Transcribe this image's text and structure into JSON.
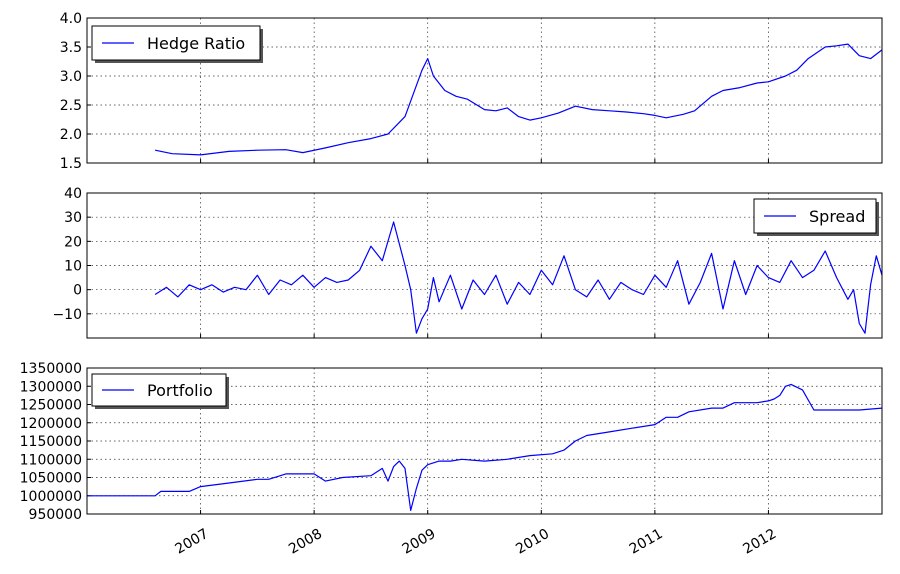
{
  "chart_data": [
    {
      "type": "line",
      "title": "",
      "xlabel": "",
      "ylabel": "",
      "ylim": [
        1.5,
        4.0
      ],
      "yticks": [
        "1.5",
        "2.0",
        "2.5",
        "3.0",
        "3.5",
        "4.0"
      ],
      "grid": true,
      "legend": {
        "placement": "top-left",
        "label": "Hedge Ratio"
      },
      "color": "#0000ff",
      "series": [
        {
          "name": "Hedge Ratio",
          "x": [
            2006.6,
            2006.75,
            2007.0,
            2007.25,
            2007.5,
            2007.75,
            2007.9,
            2008.1,
            2008.3,
            2008.5,
            2008.65,
            2008.8,
            2008.95,
            2009.0,
            2009.05,
            2009.15,
            2009.25,
            2009.35,
            2009.5,
            2009.6,
            2009.7,
            2009.8,
            2009.9,
            2010.0,
            2010.15,
            2010.3,
            2010.45,
            2010.6,
            2010.75,
            2010.9,
            2011.0,
            2011.1,
            2011.25,
            2011.35,
            2011.5,
            2011.6,
            2011.75,
            2011.9,
            2012.0,
            2012.15,
            2012.25,
            2012.35,
            2012.5,
            2012.6,
            2012.7,
            2012.8,
            2012.9,
            2013.0
          ],
          "y": [
            1.72,
            1.66,
            1.64,
            1.7,
            1.72,
            1.73,
            1.68,
            1.76,
            1.85,
            1.92,
            2.0,
            2.3,
            3.1,
            3.3,
            3.0,
            2.75,
            2.65,
            2.6,
            2.42,
            2.4,
            2.45,
            2.3,
            2.24,
            2.28,
            2.36,
            2.48,
            2.42,
            2.4,
            2.38,
            2.35,
            2.32,
            2.28,
            2.34,
            2.4,
            2.65,
            2.75,
            2.8,
            2.88,
            2.9,
            3.0,
            3.1,
            3.3,
            3.5,
            3.52,
            3.55,
            3.35,
            3.3,
            3.45
          ]
        }
      ]
    },
    {
      "type": "line",
      "title": "",
      "xlabel": "",
      "ylabel": "",
      "ylim": [
        -20,
        40
      ],
      "yticks": [
        "−10",
        "0",
        "10",
        "20",
        "30",
        "40"
      ],
      "grid": true,
      "legend": {
        "placement": "top-right",
        "label": "Spread"
      },
      "color": "#0000ff",
      "series": [
        {
          "name": "Spread",
          "x": [
            2006.6,
            2006.7,
            2006.8,
            2006.9,
            2007.0,
            2007.1,
            2007.2,
            2007.3,
            2007.4,
            2007.5,
            2007.6,
            2007.7,
            2007.8,
            2007.9,
            2008.0,
            2008.1,
            2008.2,
            2008.3,
            2008.4,
            2008.5,
            2008.6,
            2008.7,
            2008.8,
            2008.85,
            2008.9,
            2008.95,
            2009.0,
            2009.05,
            2009.1,
            2009.2,
            2009.3,
            2009.4,
            2009.5,
            2009.6,
            2009.7,
            2009.8,
            2009.9,
            2010.0,
            2010.1,
            2010.2,
            2010.3,
            2010.4,
            2010.5,
            2010.6,
            2010.7,
            2010.8,
            2010.9,
            2011.0,
            2011.1,
            2011.2,
            2011.3,
            2011.4,
            2011.5,
            2011.6,
            2011.7,
            2011.8,
            2011.9,
            2012.0,
            2012.1,
            2012.2,
            2012.3,
            2012.4,
            2012.5,
            2012.6,
            2012.7,
            2012.75,
            2012.8,
            2012.85,
            2012.9,
            2012.95,
            2013.0
          ],
          "y": [
            -2,
            1,
            -3,
            2,
            0,
            2,
            -1,
            1,
            0,
            6,
            -2,
            4,
            2,
            6,
            1,
            5,
            3,
            4,
            8,
            18,
            12,
            28,
            10,
            0,
            -18,
            -12,
            -8,
            5,
            -5,
            6,
            -8,
            4,
            -2,
            6,
            -6,
            3,
            -2,
            8,
            2,
            14,
            0,
            -3,
            4,
            -4,
            3,
            0,
            -2,
            6,
            1,
            12,
            -6,
            3,
            15,
            -8,
            12,
            -2,
            10,
            5,
            3,
            12,
            5,
            8,
            16,
            5,
            -4,
            0,
            -14,
            -18,
            2,
            14,
            6
          ]
        }
      ]
    },
    {
      "type": "line",
      "title": "",
      "xlabel": "",
      "ylabel": "",
      "ylim": [
        950000,
        1350000
      ],
      "yticks": [
        "950000",
        "1000000",
        "1050000",
        "1100000",
        "1150000",
        "1200000",
        "1250000",
        "1300000",
        "1350000"
      ],
      "grid": true,
      "legend": {
        "placement": "top-left",
        "label": "Portfolio"
      },
      "color": "#0000ff",
      "x_tick_labels": [
        "2007",
        "2008",
        "2009",
        "2010",
        "2011",
        "2012"
      ],
      "xlim": [
        2006.0,
        2013.0
      ],
      "series": [
        {
          "name": "Portfolio",
          "x": [
            2006.0,
            2006.6,
            2006.65,
            2006.9,
            2007.0,
            2007.25,
            2007.5,
            2007.6,
            2007.75,
            2008.0,
            2008.1,
            2008.25,
            2008.5,
            2008.6,
            2008.65,
            2008.7,
            2008.75,
            2008.8,
            2008.85,
            2008.9,
            2008.95,
            2009.0,
            2009.1,
            2009.2,
            2009.3,
            2009.5,
            2009.7,
            2009.9,
            2010.1,
            2010.2,
            2010.3,
            2010.4,
            2010.6,
            2010.8,
            2011.0,
            2011.1,
            2011.2,
            2011.3,
            2011.5,
            2011.6,
            2011.7,
            2011.9,
            2012.0,
            2012.05,
            2012.1,
            2012.15,
            2012.2,
            2012.3,
            2012.4,
            2012.6,
            2012.8,
            2013.0
          ],
          "y": [
            1000000,
            1000000,
            1012000,
            1012000,
            1025000,
            1035000,
            1045000,
            1045000,
            1060000,
            1060000,
            1040000,
            1050000,
            1055000,
            1075000,
            1040000,
            1080000,
            1095000,
            1075000,
            960000,
            1020000,
            1070000,
            1085000,
            1095000,
            1095000,
            1100000,
            1095000,
            1100000,
            1110000,
            1115000,
            1125000,
            1150000,
            1165000,
            1175000,
            1185000,
            1195000,
            1215000,
            1215000,
            1230000,
            1240000,
            1240000,
            1255000,
            1255000,
            1260000,
            1265000,
            1275000,
            1300000,
            1305000,
            1290000,
            1235000,
            1235000,
            1235000,
            1240000
          ]
        }
      ]
    }
  ]
}
